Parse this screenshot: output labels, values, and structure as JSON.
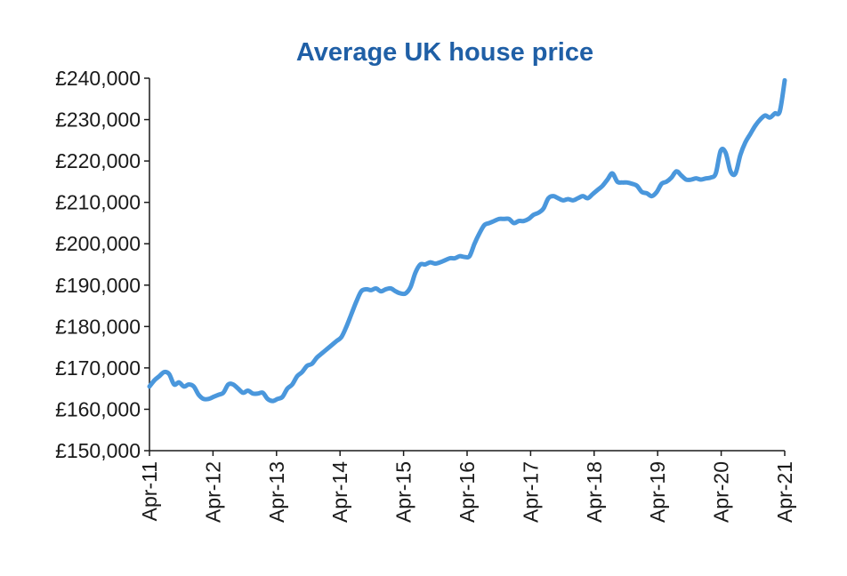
{
  "chart_data": {
    "type": "line",
    "title": "Average UK house price",
    "xlabel": "",
    "ylabel": "",
    "ylim": [
      150000,
      240000
    ],
    "yticks": [
      150000,
      160000,
      170000,
      180000,
      190000,
      200000,
      210000,
      220000,
      230000,
      240000
    ],
    "ytick_labels": [
      "£150,000",
      "£160,000",
      "£170,000",
      "£180,000",
      "£190,000",
      "£200,000",
      "£210,000",
      "£220,000",
      "£230,000",
      "£240,000"
    ],
    "xtick_labels": [
      "Apr-11",
      "Apr-12",
      "Apr-13",
      "Apr-14",
      "Apr-15",
      "Apr-16",
      "Apr-17",
      "Apr-18",
      "Apr-19",
      "Apr-20",
      "Apr-21"
    ],
    "x_start": "Apr-11",
    "x_end": "Apr-21",
    "series": [
      {
        "name": "Average UK house price",
        "color": "#4a97dc",
        "values": [
          165500,
          167000,
          168000,
          169000,
          168500,
          166000,
          166500,
          165500,
          166000,
          165500,
          163500,
          162500,
          162500,
          163000,
          163500,
          164000,
          166000,
          166000,
          165000,
          164000,
          164500,
          163800,
          163800,
          164000,
          162500,
          162000,
          162500,
          163000,
          165000,
          166000,
          168000,
          169000,
          170500,
          171000,
          172500,
          173500,
          174500,
          175500,
          176500,
          177500,
          180000,
          183000,
          186000,
          188500,
          189000,
          188800,
          189200,
          188500,
          189000,
          189200,
          188500,
          188000,
          188000,
          189500,
          193000,
          195000,
          195000,
          195500,
          195200,
          195500,
          196000,
          196500,
          196500,
          197000,
          196800,
          197000,
          200000,
          202500,
          204500,
          205000,
          205500,
          206000,
          206000,
          206000,
          205000,
          205500,
          205500,
          206000,
          207000,
          207500,
          208500,
          211000,
          211500,
          211000,
          210500,
          210800,
          210500,
          211000,
          211500,
          211000,
          212000,
          213000,
          214000,
          215500,
          217000,
          215000,
          214800,
          214800,
          214500,
          214000,
          212500,
          212200,
          211500,
          212500,
          214500,
          215000,
          216000,
          217500,
          216500,
          215500,
          215500,
          215800,
          215500,
          215800,
          216000,
          217000,
          222500,
          222000,
          217500,
          217000,
          221500,
          224500,
          226500,
          228500,
          230000,
          231000,
          230500,
          231500,
          232000,
          239500
        ]
      }
    ]
  }
}
